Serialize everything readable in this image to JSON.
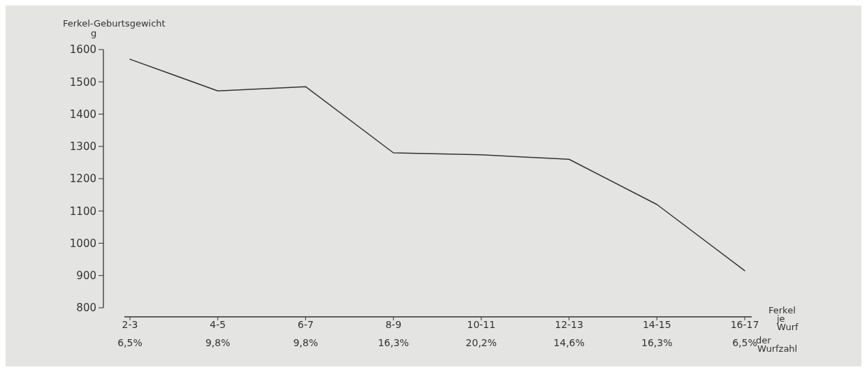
{
  "chart_data": {
    "type": "line",
    "ylabel": "Ferkel-Geburtsgewicht\ng",
    "xlabel": "Ferkel je Wurf",
    "categories": [
      "2-3\n6,5%",
      "4-5\n9,8%",
      "6-7\n9,8%",
      "8-9\n16,3%",
      "10-11\n20,2%",
      "12-13\n14,6%",
      "14-15\n16,3%",
      "16-17\n6,5%"
    ],
    "series": [
      {
        "color": "#333333",
        "values": [
          1570,
          1472,
          1485,
          1280,
          1274,
          1260,
          1120,
          915
        ]
      }
    ],
    "ylim": [
      800,
      1600
    ],
    "yticks": [
      800,
      900,
      1000,
      1100,
      1200,
      1300,
      1400,
      1500,
      1600
    ],
    "grid": false,
    "marker": "none",
    "line_style": "solid",
    "annotations": [
      "der Wurfzahl"
    ]
  }
}
